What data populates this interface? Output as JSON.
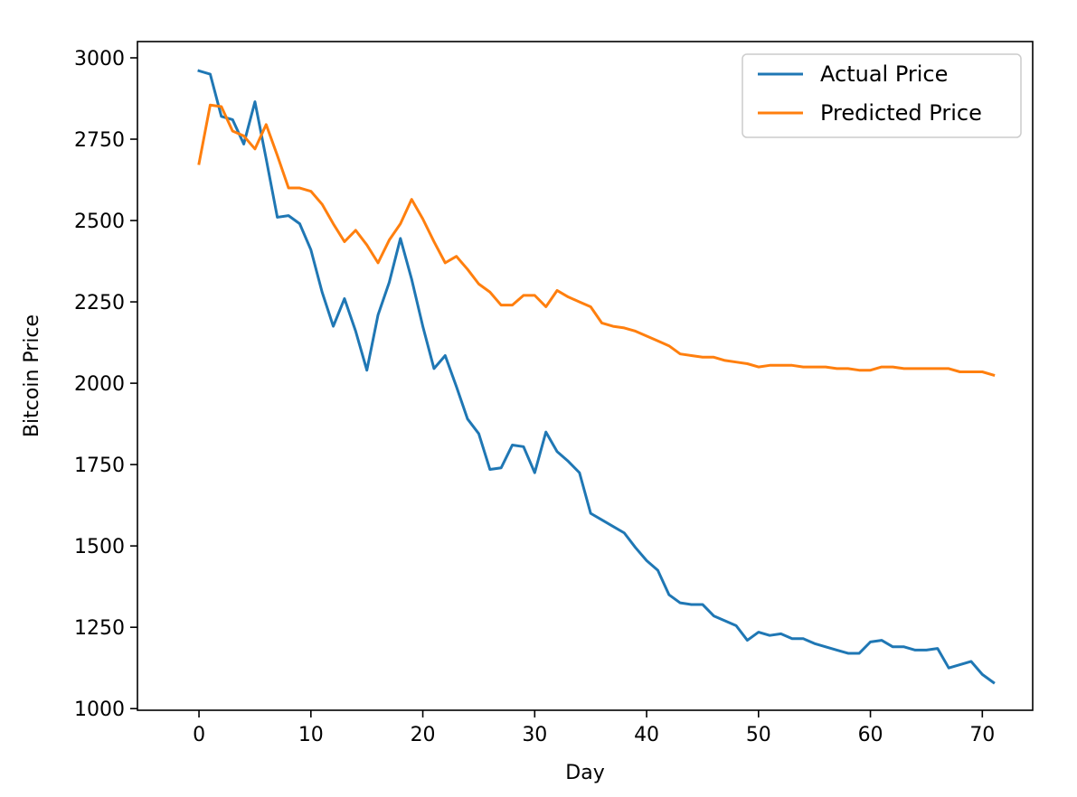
{
  "chart_data": {
    "type": "line",
    "title": "",
    "xlabel": "Day",
    "ylabel": "Bitcoin Price",
    "xlim": [
      -5.5,
      74.5
    ],
    "ylim": [
      995,
      3050
    ],
    "xticks": [
      0,
      10,
      20,
      30,
      40,
      50,
      60,
      70
    ],
    "yticks": [
      1000,
      1250,
      1500,
      1750,
      2000,
      2250,
      2500,
      2750,
      3000
    ],
    "grid": false,
    "legend_position": "top-right",
    "series": [
      {
        "name": "Actual Price",
        "color": "#1f77b4",
        "values": [
          2960,
          2950,
          2820,
          2810,
          2735,
          2865,
          2690,
          2510,
          2515,
          2490,
          2410,
          2280,
          2175,
          2260,
          2160,
          2040,
          2210,
          2310,
          2445,
          2320,
          2175,
          2045,
          2085,
          1990,
          1890,
          1845,
          1735,
          1740,
          1810,
          1805,
          1725,
          1850,
          1790,
          1760,
          1725,
          1600,
          1580,
          1560,
          1540,
          1495,
          1455,
          1425,
          1350,
          1325,
          1320,
          1320,
          1285,
          1270,
          1255,
          1210,
          1235,
          1225,
          1230,
          1215,
          1215,
          1200,
          1190,
          1180,
          1170,
          1170,
          1205,
          1210,
          1190,
          1190,
          1180,
          1180,
          1185,
          1125,
          1135,
          1145,
          1105,
          1080
        ]
      },
      {
        "name": "Predicted Price",
        "color": "#ff7f0e",
        "values": [
          2675,
          2855,
          2850,
          2775,
          2760,
          2720,
          2795,
          2700,
          2600,
          2600,
          2590,
          2550,
          2490,
          2435,
          2470,
          2425,
          2370,
          2440,
          2490,
          2565,
          2505,
          2435,
          2370,
          2390,
          2350,
          2305,
          2280,
          2240,
          2240,
          2270,
          2270,
          2235,
          2285,
          2265,
          2250,
          2235,
          2185,
          2175,
          2170,
          2160,
          2145,
          2130,
          2115,
          2090,
          2085,
          2080,
          2080,
          2070,
          2065,
          2060,
          2050,
          2055,
          2055,
          2055,
          2050,
          2050,
          2050,
          2045,
          2045,
          2040,
          2040,
          2050,
          2050,
          2045,
          2045,
          2045,
          2045,
          2045,
          2035,
          2035,
          2035,
          2025
        ]
      }
    ]
  }
}
